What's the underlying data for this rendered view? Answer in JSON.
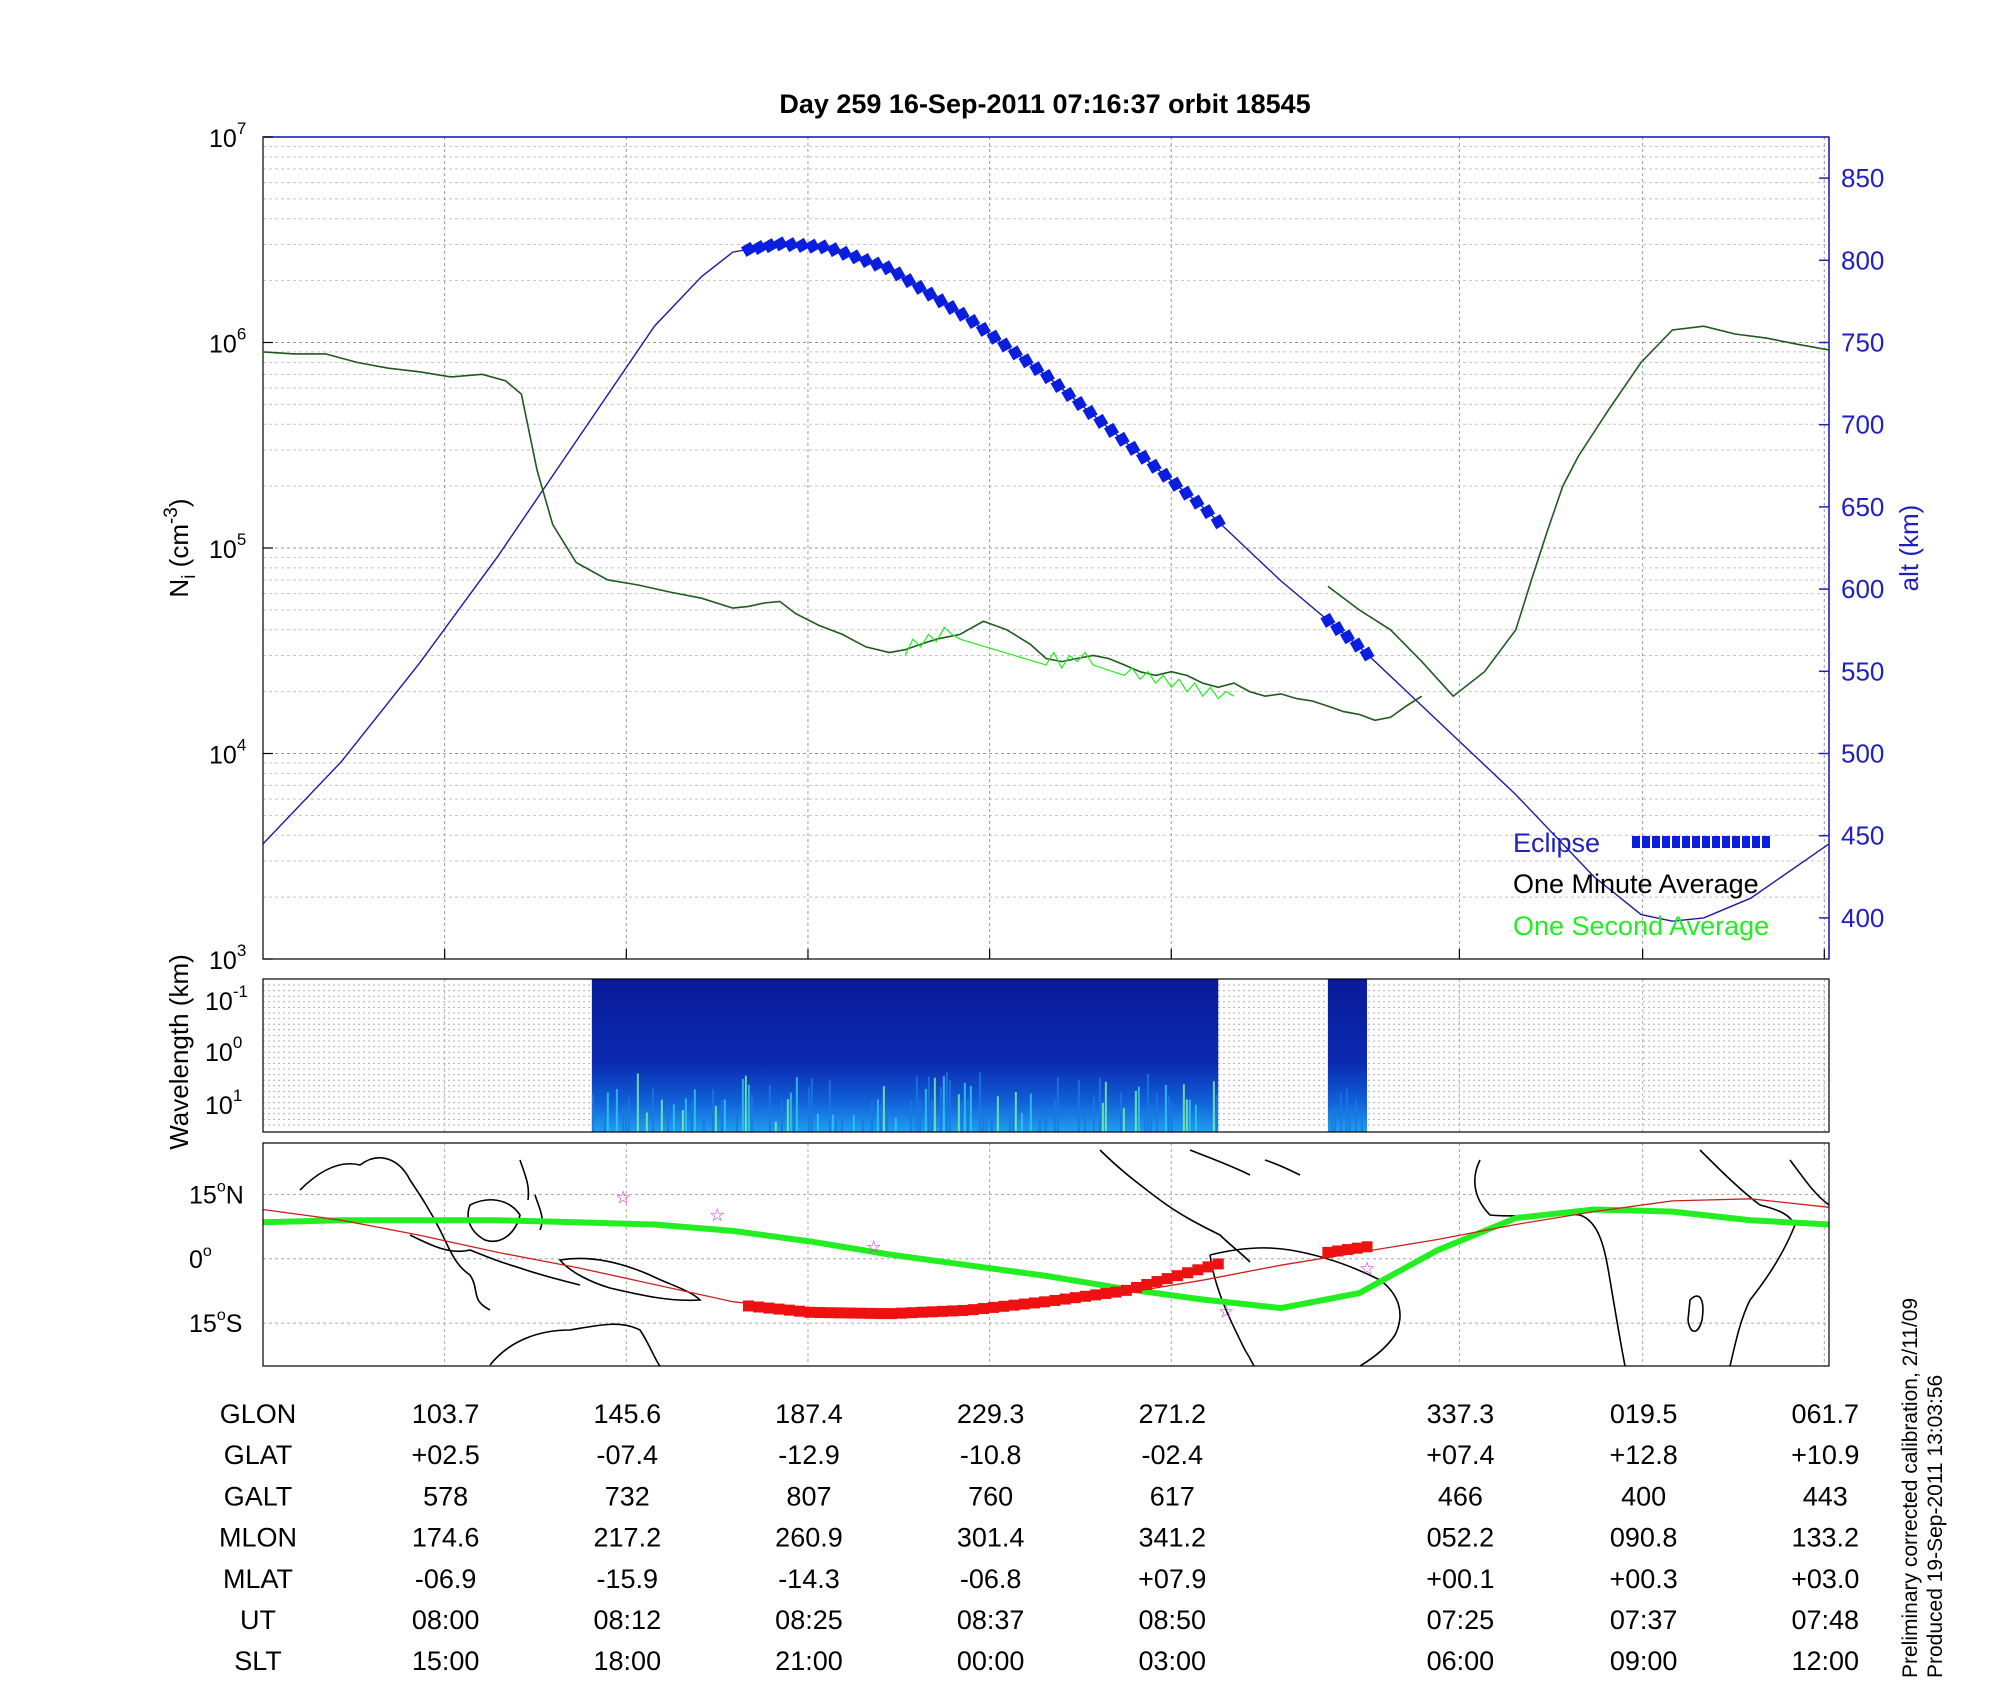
{
  "header": {
    "title": "Day 259  16-Sep-2011 07:16:37   orbit 18545"
  },
  "colors": {
    "eclipse": "#0a1ee0",
    "one_minute_average": "#1e5a1e",
    "one_second_average": "#22ee22",
    "altitude_line": "#1a1aa0",
    "track_eclipse": "#ee1111",
    "right_axis": "#2020c0"
  },
  "chart_data": [
    {
      "type": "line",
      "panel": "density",
      "ylabel": "N_i (cm^-3)",
      "ylabel_main": "N",
      "ylabel_sub": "i",
      "ylabel_open": " (cm",
      "ylabel_exp": "-3",
      "ylabel_close": ")",
      "yscale": "log",
      "ylim": [
        1000,
        10000000
      ],
      "y_ticks": [
        {
          "base": "10",
          "exp": "3",
          "value": 1000
        },
        {
          "base": "10",
          "exp": "4",
          "value": 10000
        },
        {
          "base": "10",
          "exp": "5",
          "value": 100000
        },
        {
          "base": "10",
          "exp": "6",
          "value": 1000000
        },
        {
          "base": "10",
          "exp": "7",
          "value": 10000000
        }
      ],
      "y2label": "alt (km)",
      "y2lim": [
        375,
        875
      ],
      "y2_ticks": [
        "400",
        "450",
        "500",
        "550",
        "600",
        "650",
        "700",
        "750",
        "800",
        "850"
      ],
      "x_note": "x axis is orbit fraction 0-1 from left to right edge",
      "xlim": [
        0,
        1
      ],
      "grid": true,
      "legend_position": "bottom-right",
      "legend": {
        "eclipse": "Eclipse",
        "one_minute_average": "One Minute Average",
        "one_second_average": "One Second Average"
      },
      "series": [
        {
          "name": "One Minute Average",
          "segments": [
            {
              "x": [
                0.0,
                0.02,
                0.04,
                0.06,
                0.08,
                0.1,
                0.12,
                0.14,
                0.155,
                0.165,
                0.175,
                0.185,
                0.2,
                0.22,
                0.24,
                0.26,
                0.28,
                0.3,
                0.31,
                0.32,
                0.33,
                0.34,
                0.355,
                0.37,
                0.385,
                0.4,
                0.41,
                0.42,
                0.43,
                0.445,
                0.46,
                0.475,
                0.49,
                0.5,
                0.51,
                0.52,
                0.53,
                0.54,
                0.55,
                0.56,
                0.57,
                0.58,
                0.59,
                0.6,
                0.61,
                0.62,
                0.63,
                0.64,
                0.65,
                0.66,
                0.67,
                0.68,
                0.69,
                0.7,
                0.71,
                0.72,
                0.73,
                0.74
              ],
              "y": [
                900000,
                880000,
                880000,
                800000,
                750000,
                720000,
                680000,
                700000,
                650000,
                560000,
                240000,
                130000,
                85000,
                70000,
                66000,
                61000,
                57000,
                51000,
                52000,
                54000,
                55000,
                48000,
                42000,
                38000,
                33000,
                31000,
                32000,
                34000,
                36000,
                38000,
                44000,
                40000,
                34000,
                29000,
                28000,
                29000,
                30000,
                29000,
                27000,
                25000,
                24000,
                25000,
                24000,
                22000,
                21000,
                22000,
                20000,
                19000,
                19500,
                18500,
                18000,
                17000,
                16000,
                15500,
                14500,
                15000,
                17000,
                19000
              ]
            },
            {
              "x": [
                0.68,
                0.7,
                0.72,
                0.74,
                0.76,
                0.78,
                0.8,
                0.81,
                0.82,
                0.83,
                0.84,
                0.86,
                0.88,
                0.9,
                0.92,
                0.94,
                0.96,
                0.98,
                1.0
              ],
              "y": [
                65000,
                50000,
                40000,
                28000,
                19000,
                25000,
                40000,
                70000,
                120000,
                200000,
                280000,
                480000,
                800000,
                1150000,
                1200000,
                1100000,
                1050000,
                980000,
                920000
              ]
            }
          ]
        },
        {
          "name": "One Second Average",
          "segments": [
            {
              "x": [
                0.41,
                0.415,
                0.42,
                0.425,
                0.43,
                0.435,
                0.44,
                0.445,
                0.5,
                0.505,
                0.51,
                0.515,
                0.52,
                0.525,
                0.53,
                0.55,
                0.555,
                0.56,
                0.565,
                0.57,
                0.575,
                0.58,
                0.585,
                0.59,
                0.595,
                0.6,
                0.605,
                0.61,
                0.615,
                0.62
              ],
              "y": [
                30000,
                36000,
                33000,
                38000,
                35000,
                41000,
                38000,
                36000,
                27000,
                31000,
                26000,
                30000,
                28000,
                31000,
                27000,
                24000,
                26000,
                23000,
                25000,
                22000,
                24000,
                21000,
                23000,
                20000,
                22000,
                19000,
                21000,
                18500,
                20000,
                19000
              ]
            }
          ]
        }
      ],
      "altitude": {
        "name": "alt (km)",
        "x": [
          0.0,
          0.05,
          0.1,
          0.15,
          0.2,
          0.25,
          0.28,
          0.3,
          0.33,
          0.36,
          0.4,
          0.45,
          0.5,
          0.55,
          0.6,
          0.65,
          0.7,
          0.75,
          0.8,
          0.85,
          0.88,
          0.9,
          0.92,
          0.95,
          1.0
        ],
        "y": [
          445,
          495,
          555,
          620,
          690,
          760,
          790,
          805,
          810,
          808,
          795,
          765,
          730,
          690,
          650,
          605,
          565,
          520,
          475,
          425,
          402,
          398,
          400,
          412,
          445
        ]
      },
      "eclipse_segments": [
        [
          0.31,
          0.61
        ],
        [
          0.68,
          0.705
        ]
      ]
    },
    {
      "type": "heatmap",
      "panel": "wavelength",
      "ylabel": "Wavelength (km)",
      "y_ticks": [
        {
          "base": "10",
          "exp": "-1"
        },
        {
          "base": "10",
          "exp": "0"
        },
        {
          "base": "10",
          "exp": "1"
        }
      ],
      "data_segments": [
        [
          0.21,
          0.61
        ],
        [
          0.68,
          0.705
        ]
      ]
    },
    {
      "type": "line",
      "panel": "map",
      "y_ticks": [
        {
          "label": "15",
          "suffix": "N",
          "lat": 15
        },
        {
          "label": "0",
          "suffix": "",
          "lat": 0
        },
        {
          "label": "15",
          "suffix": "S",
          "lat": -15
        }
      ],
      "ylim": [
        -25,
        27
      ],
      "series": [
        {
          "name": "magnetic_equator",
          "x": [
            0.0,
            0.05,
            0.1,
            0.15,
            0.2,
            0.25,
            0.3,
            0.35,
            0.4,
            0.45,
            0.5,
            0.55,
            0.6,
            0.65,
            0.7,
            0.75,
            0.8,
            0.85,
            0.9,
            0.95,
            1.0
          ],
          "lat": [
            8.5,
            9,
            9,
            9,
            8.5,
            8,
            6.5,
            4,
            1,
            -1.5,
            -4,
            -7,
            -9.5,
            -11.5,
            -8,
            2,
            9.5,
            11.5,
            11,
            9,
            8
          ]
        },
        {
          "name": "orbit_track",
          "x": [
            0.0,
            0.05,
            0.1,
            0.15,
            0.2,
            0.25,
            0.3,
            0.35,
            0.4,
            0.45,
            0.5,
            0.55,
            0.6,
            0.65,
            0.7,
            0.75,
            0.8,
            0.85,
            0.9,
            0.95,
            1.0
          ],
          "lat": [
            11.5,
            9,
            5.5,
            1.5,
            -2,
            -6,
            -10,
            -12,
            -12,
            -11.5,
            -10,
            -8,
            -5,
            -1.5,
            1.5,
            4.5,
            8,
            11,
            13.5,
            14,
            12
          ]
        },
        {
          "name": "eclipse_track",
          "x": [
            0.31,
            0.35,
            0.4,
            0.45,
            0.5,
            0.55,
            0.61
          ],
          "lat": [
            -11,
            -12.5,
            -12.8,
            -12,
            -10,
            -7.5,
            -1.2
          ]
        },
        {
          "name": "eclipse_track_2",
          "x": [
            0.68,
            0.705
          ],
          "lat": [
            1.5,
            2.8
          ]
        }
      ],
      "markers": [
        {
          "x": 0.23,
          "lat": 14.5
        },
        {
          "x": 0.29,
          "lat": 10.5
        },
        {
          "x": 0.39,
          "lat": 3
        },
        {
          "x": 0.615,
          "lat": -12
        },
        {
          "x": 0.705,
          "lat": -2
        }
      ]
    }
  ],
  "table": {
    "rows": [
      {
        "label": "GLON",
        "values": [
          "103.7",
          "145.6",
          "187.4",
          "229.3",
          "271.2",
          "337.3",
          "019.5",
          "061.7"
        ]
      },
      {
        "label": "GLAT",
        "values": [
          "+02.5",
          "-07.4",
          "-12.9",
          "-10.8",
          "-02.4",
          "+07.4",
          "+12.8",
          "+10.9"
        ]
      },
      {
        "label": "GALT",
        "values": [
          "578",
          "732",
          "807",
          "760",
          "617",
          "466",
          "400",
          "443"
        ]
      },
      {
        "label": "MLON",
        "values": [
          "174.6",
          "217.2",
          "260.9",
          "301.4",
          "341.2",
          "052.2",
          "090.8",
          "133.2"
        ]
      },
      {
        "label": "MLAT",
        "values": [
          "-06.9",
          "-15.9",
          "-14.3",
          "-06.8",
          "+07.9",
          "+00.1",
          "+00.3",
          "+03.0"
        ]
      },
      {
        "label": "UT",
        "values": [
          "08:00",
          "08:12",
          "08:25",
          "08:37",
          "08:50",
          "07:25",
          "07:37",
          "07:48"
        ]
      },
      {
        "label": "SLT",
        "values": [
          "15:00",
          "18:00",
          "21:00",
          "00:00",
          "03:00",
          "06:00",
          "09:00",
          "12:00"
        ]
      }
    ],
    "column_x": [
      0.116,
      0.232,
      0.348,
      0.464,
      0.58,
      0.764,
      0.881,
      0.997
    ]
  },
  "side_notes": {
    "line1": "Preliminary corrected calibration, 2/11/09",
    "line2": "Produced 19-Sep-2011 13:03:56"
  }
}
